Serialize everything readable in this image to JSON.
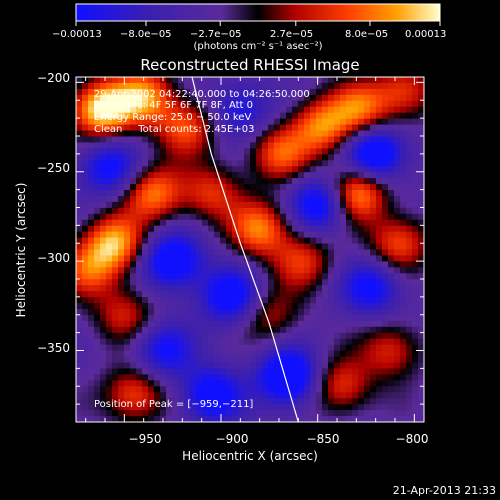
{
  "chart_data": {
    "type": "heatmap",
    "title": "Reconstructed RHESSI Image",
    "xlabel": "Heliocentric X (arcsec)",
    "ylabel": "Heliocentric Y (arcsec)",
    "xlim": [
      -975,
      -795
    ],
    "ylim": [
      -390,
      -197
    ],
    "x_ticks": [
      -950,
      -900,
      -850,
      -800
    ],
    "x_tick_labels": [
      "−950",
      "−900",
      "−850",
      "−800"
    ],
    "y_ticks": [
      -200,
      -250,
      -300,
      -350
    ],
    "y_tick_labels": [
      "−200",
      "−250",
      "−300",
      "−350"
    ],
    "colorbar": {
      "min": -0.00013,
      "max": 0.00013,
      "tick_labels": [
        "−0.00013",
        "−8.0e−05",
        "−2.7e−05",
        "2.7e−05",
        "8.0e−05",
        "0.00013"
      ],
      "unit_label": "(photons cm⁻² s⁻¹ asec⁻²)",
      "colormap": [
        "#1010ff",
        "#3a1fb0",
        "#5a2a9a",
        "#000000",
        "#b00000",
        "#ff4000",
        "#ffa000",
        "#ffffd0"
      ]
    },
    "annotations": [
      "29-Apr-2002 04:22:40.000 to 04:26:50.000",
      "Detectors: 4F 5F 6F 7F 8F, Att 0",
      "Energy Range: 25.0 − 50.0 keV",
      "Clean     Total counts: 2.45E+03"
    ],
    "peak_label": "Position of Peak = [−959,−211]",
    "peak": [
      -959,
      -211
    ],
    "limb_curve": [
      [
        -915,
        -197
      ],
      [
        -905,
        -240
      ],
      [
        -890,
        -290
      ],
      [
        -875,
        -335
      ],
      [
        -860,
        -390
      ]
    ],
    "sources": [
      {
        "x": -962,
        "y": -215,
        "intensity": 1.0
      },
      {
        "x": -940,
        "y": -208,
        "intensity": 0.75
      },
      {
        "x": -918,
        "y": -225,
        "intensity": 0.6
      },
      {
        "x": -935,
        "y": -262,
        "intensity": 0.7
      },
      {
        "x": -955,
        "y": -290,
        "intensity": 0.8
      },
      {
        "x": -968,
        "y": -305,
        "intensity": 0.55
      },
      {
        "x": -950,
        "y": -330,
        "intensity": 0.45
      },
      {
        "x": -945,
        "y": -375,
        "intensity": 0.6
      },
      {
        "x": -905,
        "y": -262,
        "intensity": 0.5
      },
      {
        "x": -880,
        "y": -282,
        "intensity": 0.7
      },
      {
        "x": -870,
        "y": -240,
        "intensity": 0.6
      },
      {
        "x": -848,
        "y": -225,
        "intensity": 0.7
      },
      {
        "x": -828,
        "y": -215,
        "intensity": 0.65
      },
      {
        "x": -805,
        "y": -205,
        "intensity": 0.55
      },
      {
        "x": -830,
        "y": -262,
        "intensity": 0.85
      },
      {
        "x": -808,
        "y": -290,
        "intensity": 0.6
      },
      {
        "x": -858,
        "y": -300,
        "intensity": 0.5
      },
      {
        "x": -812,
        "y": -350,
        "intensity": 0.5
      },
      {
        "x": -838,
        "y": -370,
        "intensity": 0.55
      },
      {
        "x": -875,
        "y": -330,
        "intensity": 0.4
      },
      {
        "x": -958,
        "y": -248,
        "intensity": -0.6
      },
      {
        "x": -925,
        "y": -300,
        "intensity": -0.8
      },
      {
        "x": -895,
        "y": -320,
        "intensity": -0.7
      },
      {
        "x": -905,
        "y": -375,
        "intensity": -0.7
      },
      {
        "x": -865,
        "y": -365,
        "intensity": -0.9
      },
      {
        "x": -848,
        "y": -268,
        "intensity": -0.75
      },
      {
        "x": -820,
        "y": -240,
        "intensity": -0.85
      },
      {
        "x": -822,
        "y": -315,
        "intensity": -0.6
      },
      {
        "x": -890,
        "y": -215,
        "intensity": -0.5
      },
      {
        "x": -930,
        "y": -350,
        "intensity": -0.55
      }
    ]
  },
  "footer": {
    "timestamp": "21-Apr-2013 21:33"
  }
}
